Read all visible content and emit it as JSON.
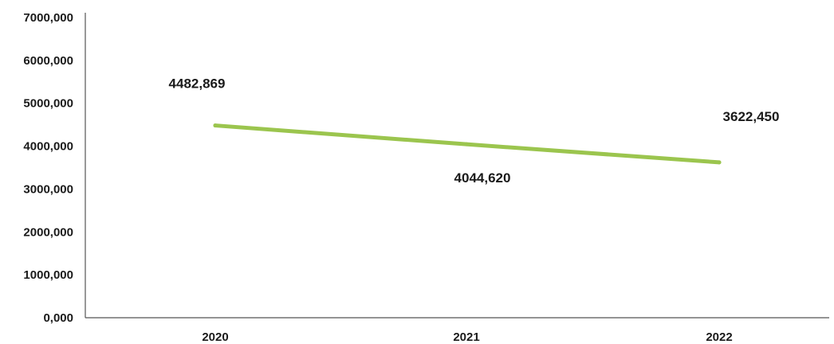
{
  "chart_data": {
    "type": "line",
    "categories": [
      "2020",
      "2021",
      "2022"
    ],
    "series": [
      {
        "values": [
          4482.869,
          4044.62,
          3622.45
        ],
        "value_labels": [
          "4482,869",
          "4044,620",
          "3622,450"
        ],
        "color": "#9bc54e"
      }
    ],
    "ylim": [
      0,
      7000
    ],
    "y_ticks": [
      {
        "value": 0,
        "label": "0,000"
      },
      {
        "value": 1000,
        "label": "1000,000"
      },
      {
        "value": 2000,
        "label": "2000,000"
      },
      {
        "value": 3000,
        "label": "3000,000"
      },
      {
        "value": 4000,
        "label": "4000,000"
      },
      {
        "value": 5000,
        "label": "5000,000"
      },
      {
        "value": 6000,
        "label": "6000,000"
      },
      {
        "value": 7000,
        "label": "7000,000"
      }
    ],
    "grid": false,
    "legend": "none",
    "axis_color": "#555555"
  }
}
